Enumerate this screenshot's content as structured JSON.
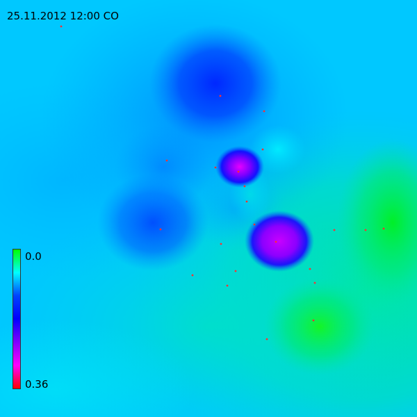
{
  "map": {
    "title": "25.11.2012 12:00 CO",
    "legend": {
      "min_label": "0.0",
      "max_label": "0.36",
      "colors": [
        "#00ff00",
        "#00ffff",
        "#0044ff",
        "#0000ff",
        "#8000ff",
        "#ff00ff",
        "#ff0000"
      ]
    },
    "station_marker_color": "#ff3030"
  }
}
